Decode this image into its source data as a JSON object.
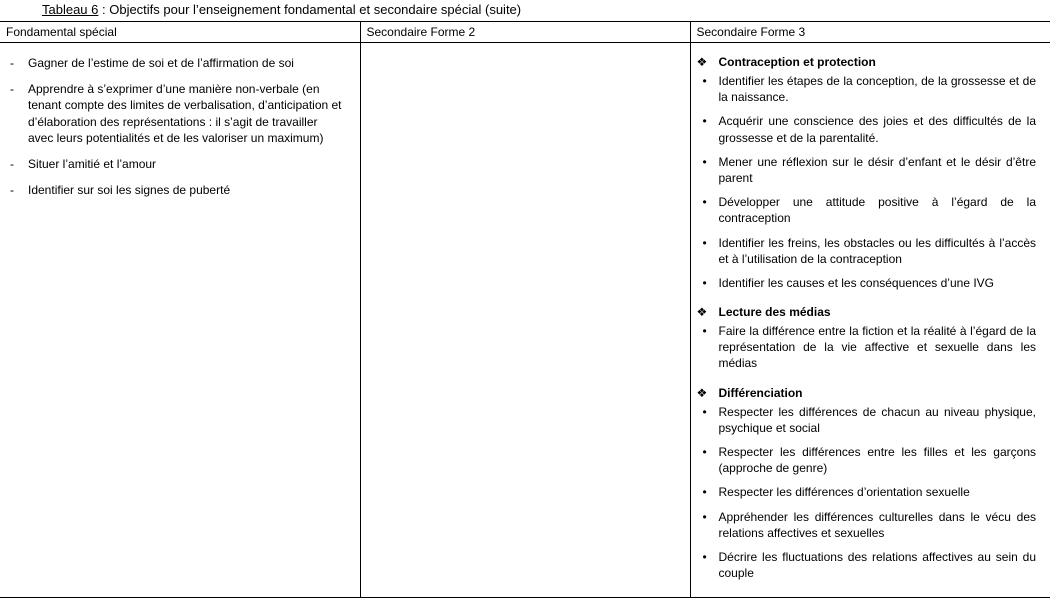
{
  "title": {
    "label_underlined": "Tableau 6",
    "label_rest": " : Objectifs pour l’enseignement fondamental et secondaire spécial (suite)"
  },
  "headers": {
    "col1": "Fondamental spécial",
    "col2": "Secondaire Forme 2",
    "col3": "Secondaire Forme 3"
  },
  "col1_items": [
    "Gagner de l’estime de soi et de l’affirmation de soi",
    "Apprendre à s’exprimer d’une manière non-verbale (en tenant compte des limites de verbalisation, d’anticipation et d’élaboration des représentations : il s’agit de travailler avec leurs potentialités et de les valoriser un maximum)",
    "Situer l’amitié et l’amour",
    "Identifier sur soi les signes de puberté"
  ],
  "col3_sections": [
    {
      "heading": "Contraception et protection",
      "items": [
        "Identifier les étapes de la conception, de la grossesse et de la naissance.",
        "Acquérir une conscience des joies et des difficultés de la grossesse et de la parentalité.",
        "Mener une réflexion sur le désir d’enfant et le désir d’être parent",
        "Développer une attitude positive à l’égard de la contraception",
        "Identifier les freins, les obstacles ou les difficultés à l’accès et à l’utilisation de la contraception",
        "Identifier les causes et les conséquences d’une IVG"
      ]
    },
    {
      "heading": "Lecture des médias",
      "items": [
        "Faire la différence entre la fiction et la réalité à l’égard de la représentation de la vie affective et sexuelle dans les médias"
      ]
    },
    {
      "heading": "Différenciation",
      "items": [
        "Respecter les différences de chacun au niveau physique, psychique et social",
        "Respecter les différences entre les filles et les garçons (approche de genre)",
        "Respecter les différences d’orientation sexuelle",
        "Appréhender les différences culturelles dans le vécu des relations affectives et sexuelles",
        "Décrire les fluctuations des relations affectives au sein du couple"
      ]
    }
  ],
  "glyphs": {
    "diamond": "❖"
  }
}
